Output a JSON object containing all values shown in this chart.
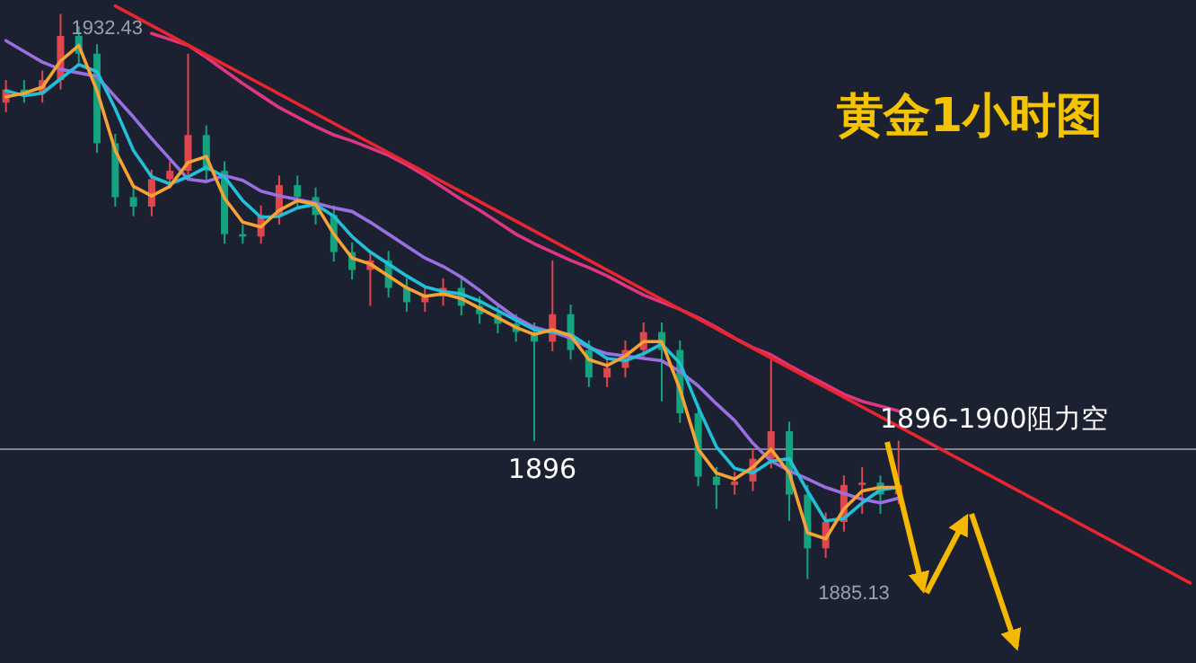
{
  "chart_data": {
    "type": "candlestick",
    "title": "黄金1小时图",
    "tick_labels": false,
    "categories": [
      null,
      null,
      null,
      null,
      null,
      null,
      null,
      null,
      null,
      null,
      null,
      null,
      null,
      null,
      null,
      null,
      null,
      null,
      null,
      null,
      null,
      null,
      null,
      null,
      null,
      null,
      null,
      null,
      null,
      null,
      null,
      null,
      null,
      null,
      null,
      null,
      null,
      null,
      null,
      null,
      null,
      null,
      null,
      null,
      null,
      null,
      null,
      null,
      null,
      null,
      null,
      null,
      null,
      null,
      null,
      null,
      null,
      null,
      null,
      null,
      null,
      null,
      null,
      null,
      null,
      null
    ],
    "ylim": [
      1878.1,
      1933.6
    ],
    "ohlc": [
      [
        1925.0,
        1926.9,
        1924.2,
        1926.1
      ],
      [
        1926.1,
        1926.9,
        1925.0,
        1925.8
      ],
      [
        1925.8,
        1927.7,
        1925.0,
        1926.9
      ],
      [
        1926.9,
        1932.43,
        1926.1,
        1930.6
      ],
      [
        1930.6,
        1931.4,
        1928.3,
        1929.1
      ],
      [
        1929.1,
        1929.9,
        1920.8,
        1921.6
      ],
      [
        1921.6,
        1922.4,
        1916.3,
        1917.1
      ],
      [
        1917.1,
        1917.9,
        1915.5,
        1916.3
      ],
      [
        1916.3,
        1919.4,
        1915.5,
        1918.6
      ],
      [
        1918.6,
        1920.1,
        1917.8,
        1919.3
      ],
      [
        1919.3,
        1929.1,
        1918.5,
        1922.3
      ],
      [
        1922.3,
        1923.1,
        1918.5,
        1919.3
      ],
      [
        1919.3,
        1920.1,
        1913.2,
        1914.0
      ],
      [
        1914.0,
        1914.8,
        1913.2,
        1913.8
      ],
      [
        1913.8,
        1916.4,
        1913.2,
        1915.6
      ],
      [
        1915.6,
        1918.9,
        1914.8,
        1918.1
      ],
      [
        1918.1,
        1918.9,
        1916.3,
        1917.1
      ],
      [
        1917.1,
        1917.9,
        1914.8,
        1915.6
      ],
      [
        1915.6,
        1916.4,
        1911.7,
        1912.5
      ],
      [
        1912.5,
        1913.3,
        1910.2,
        1911.0
      ],
      [
        1911.0,
        1912.6,
        1908.0,
        1911.8
      ],
      [
        1911.8,
        1912.6,
        1908.7,
        1909.5
      ],
      [
        1909.5,
        1910.3,
        1907.5,
        1908.3
      ],
      [
        1908.3,
        1909.6,
        1907.5,
        1908.8
      ],
      [
        1908.8,
        1910.3,
        1908.0,
        1909.5
      ],
      [
        1909.5,
        1910.3,
        1907.2,
        1908.0
      ],
      [
        1908.0,
        1908.8,
        1906.5,
        1907.3
      ],
      [
        1907.3,
        1908.1,
        1905.7,
        1906.5
      ],
      [
        1906.5,
        1907.3,
        1905.0,
        1905.8
      ],
      [
        1905.8,
        1906.6,
        1896.7,
        1905.0
      ],
      [
        1905.0,
        1911.8,
        1904.2,
        1907.3
      ],
      [
        1907.3,
        1908.1,
        1903.5,
        1904.3
      ],
      [
        1904.3,
        1905.1,
        1901.2,
        1902.0
      ],
      [
        1902.0,
        1903.6,
        1901.2,
        1902.8
      ],
      [
        1902.8,
        1905.1,
        1902.0,
        1904.3
      ],
      [
        1904.3,
        1906.6,
        1903.5,
        1905.8
      ],
      [
        1905.8,
        1906.6,
        1900.0,
        1904.3
      ],
      [
        1904.3,
        1905.1,
        1898.2,
        1899.0
      ],
      [
        1899.0,
        1899.8,
        1892.9,
        1893.7
      ],
      [
        1893.7,
        1894.5,
        1891.0,
        1893.0
      ],
      [
        1893.0,
        1894.1,
        1892.2,
        1893.3
      ],
      [
        1893.3,
        1896.0,
        1892.5,
        1895.2
      ],
      [
        1895.2,
        1903.5,
        1894.4,
        1897.5
      ],
      [
        1897.5,
        1898.3,
        1890.0,
        1892.2
      ],
      [
        1892.2,
        1893.0,
        1885.13,
        1887.7
      ],
      [
        1887.7,
        1890.7,
        1886.9,
        1889.9
      ],
      [
        1889.9,
        1893.8,
        1889.1,
        1893.0
      ],
      [
        1893.0,
        1894.5,
        1890.6,
        1893.2
      ],
      [
        1893.2,
        1893.8,
        1890.6,
        1892.2
      ],
      [
        1892.2,
        1896.7,
        1891.4,
        1893.0
      ],
      null,
      null,
      null,
      null,
      null,
      null,
      null,
      null,
      null,
      null,
      null,
      null,
      null,
      null,
      null,
      null
    ],
    "series": [
      {
        "type": "line",
        "color": "#e0357f",
        "values": [
          null,
          null,
          null,
          null,
          null,
          null,
          null,
          null,
          1930.8,
          1930.3,
          1929.8,
          1928.8,
          1927.7,
          1926.6,
          1925.6,
          1924.6,
          1923.8,
          1923.0,
          1922.3,
          1921.8,
          1921.2,
          1920.6,
          1919.8,
          1918.9,
          1917.9,
          1916.9,
          1916.0,
          1915.0,
          1914.0,
          1913.2,
          1912.5,
          1911.8,
          1911.2,
          1910.5,
          1909.7,
          1908.9,
          1908.3,
          1907.7,
          1907.0,
          1906.2,
          1905.3,
          1904.5,
          1903.9,
          1903.0,
          1902.2,
          1901.4,
          1900.6,
          1900.0,
          1899.6,
          1899.2,
          null,
          null,
          null,
          null,
          null,
          null,
          null,
          null,
          null,
          null,
          null,
          null,
          null,
          null,
          null,
          null
        ]
      },
      {
        "type": "line",
        "color": "#9b6fe0",
        "values": [
          1930.2,
          1929.3,
          1928.4,
          1927.8,
          1927.5,
          1927.2,
          1925.5,
          1923.8,
          1922.0,
          1920.3,
          1918.6,
          1918.4,
          1918.9,
          1918.5,
          1917.6,
          1917.2,
          1916.9,
          1916.6,
          1916.2,
          1915.9,
          1915.0,
          1914.0,
          1913.0,
          1912.0,
          1911.3,
          1910.4,
          1909.3,
          1908.1,
          1907.0,
          1906.2,
          1905.8,
          1905.3,
          1904.5,
          1904.0,
          1903.8,
          1903.6,
          1903.4,
          1902.5,
          1901.3,
          1899.8,
          1898.4,
          1896.5,
          1895.0,
          1894.2,
          1893.5,
          1892.8,
          1892.3,
          1891.8,
          1891.5,
          1891.9,
          null,
          null,
          null,
          null,
          null,
          null,
          null,
          null,
          null,
          null,
          null,
          null,
          null,
          null,
          null,
          null
        ]
      },
      {
        "type": "line",
        "color": "#22c0d8",
        "values": [
          1926.0,
          1925.6,
          1925.8,
          1927.0,
          1928.2,
          1927.6,
          1924.5,
          1921.0,
          1918.8,
          1918.2,
          1918.8,
          1919.6,
          1918.8,
          1916.8,
          1915.4,
          1915.5,
          1916.2,
          1916.5,
          1915.5,
          1913.8,
          1912.5,
          1911.5,
          1910.5,
          1909.6,
          1909.2,
          1909.0,
          1908.4,
          1907.6,
          1906.8,
          1906.0,
          1905.8,
          1905.6,
          1904.6,
          1903.6,
          1903.4,
          1904.0,
          1904.8,
          1903.2,
          1899.5,
          1896.2,
          1894.4,
          1894.0,
          1895.0,
          1895.2,
          1892.5,
          1890.0,
          1890.2,
          1891.5,
          1892.6,
          1892.8,
          null,
          null,
          null,
          null,
          null,
          null,
          null,
          null,
          null,
          null,
          null,
          null,
          null,
          null,
          null,
          null
        ]
      },
      {
        "type": "line",
        "color": "#f7a234",
        "values": [
          1925.5,
          1925.8,
          1926.3,
          1928.5,
          1929.8,
          1926.0,
          1921.0,
          1918.0,
          1917.2,
          1918.0,
          1920.0,
          1920.5,
          1917.0,
          1915.0,
          1914.6,
          1916.0,
          1916.8,
          1916.5,
          1914.0,
          1912.0,
          1911.5,
          1910.5,
          1909.5,
          1908.8,
          1909.0,
          1908.6,
          1907.8,
          1907.0,
          1906.2,
          1905.6,
          1906.0,
          1905.5,
          1903.5,
          1903.0,
          1903.8,
          1905.0,
          1905.0,
          1901.0,
          1896.0,
          1894.0,
          1893.5,
          1894.5,
          1896.0,
          1894.0,
          1889.0,
          1888.5,
          1891.0,
          1892.5,
          1892.8,
          1892.8,
          null,
          null,
          null,
          null,
          null,
          null,
          null,
          null,
          null,
          null,
          null,
          null,
          null,
          null,
          null,
          null
        ]
      },
      {
        "type": "line",
        "color": "#e8262e",
        "values": [
          null,
          null,
          null,
          null,
          null,
          null,
          1933.1,
          null,
          null,
          null,
          null,
          null,
          null,
          null,
          null,
          null,
          null,
          null,
          null,
          null,
          null,
          null,
          null,
          null,
          null,
          null,
          null,
          null,
          null,
          null,
          null,
          null,
          null,
          null,
          null,
          null,
          null,
          null,
          null,
          null,
          null,
          null,
          null,
          null,
          null,
          null,
          null,
          null,
          null,
          null,
          null,
          null,
          null,
          null,
          null,
          null,
          null,
          null,
          null,
          null,
          null,
          null,
          null,
          null,
          null,
          1884.8
        ]
      }
    ],
    "ref_lines": [
      {
        "axis": "y",
        "value": 1896,
        "label": "1896",
        "color": "#7d8290"
      }
    ],
    "annotations": [
      {
        "text": "1896-1900阻力空",
        "y": 1896
      },
      "1932.43",
      "1885.13"
    ]
  }
}
